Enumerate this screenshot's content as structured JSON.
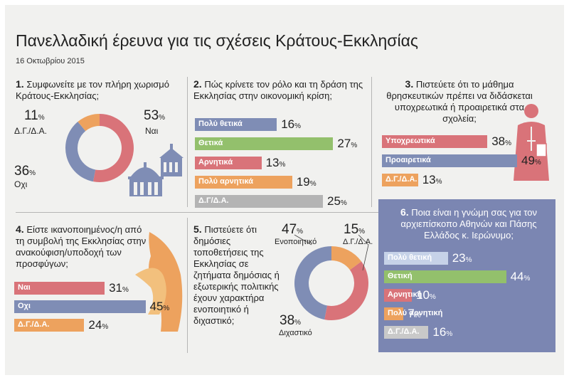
{
  "title": "Πανελλαδική έρευνα για τις σχέσεις Κράτους-Εκκλησίας",
  "date": "16 Οκτωβρίου 2015",
  "pct_sign": "%",
  "colors": {
    "blue": "#7f8db5",
    "red": "#d97379",
    "orange": "#eda25e",
    "green": "#93c06c",
    "gray": "#b4b4b4"
  },
  "icons": [
    "church-icon",
    "priest-icon",
    "hands-icon"
  ],
  "chart_data": [
    {
      "type": "pie",
      "id": "q1",
      "number": "1.",
      "question": "Συμφωνείτε με τον πλήρη χωρισμό Κράτους-Εκκλησίας;",
      "labels": [
        "Ναι",
        "Οχι",
        "Δ.Γ./Δ.Α."
      ],
      "values": [
        53,
        36,
        11
      ],
      "colors": [
        "#d97379",
        "#7f8db5",
        "#eda25e"
      ]
    },
    {
      "type": "bar",
      "id": "q2",
      "number": "2.",
      "question": "Πώς κρίνετε τον ρόλο και τη δράση της Εκκλησίας στην οικονομική κρίση;",
      "categories": [
        "Πολύ θετικά",
        "Θετικά",
        "Αρνητικά",
        "Πολύ αρνητικά",
        "Δ.Γ/Δ.Α."
      ],
      "values": [
        16,
        27,
        13,
        19,
        25
      ],
      "colors": [
        "#7f8db5",
        "#93c06c",
        "#d97379",
        "#eda25e",
        "#b4b4b4"
      ]
    },
    {
      "type": "bar",
      "id": "q3",
      "number": "3.",
      "question": "Πιστεύετε ότι το μάθημα θρησκευτικών πρέπει να διδάσκεται υποχρεωτικά ή προαιρετικά στα σχολεία;",
      "categories": [
        "Υποχρεωτικά",
        "Προαιρετικά",
        "Δ.Γ./Δ.Α."
      ],
      "values": [
        38,
        49,
        13
      ],
      "colors": [
        "#d97379",
        "#7f8db5",
        "#eda25e"
      ]
    },
    {
      "type": "bar",
      "id": "q4",
      "number": "4.",
      "question": "Είστε ικανοποιημένος/η από τη συμβολή της Εκκλησίας στην ανακούφιση/υποδοχή των προσφύγων;",
      "categories": [
        "Ναι",
        "Οχι",
        "Δ.Γ./Δ.Α."
      ],
      "values": [
        31,
        45,
        24
      ],
      "colors": [
        "#d97379",
        "#7f8db5",
        "#eda25e"
      ]
    },
    {
      "type": "pie",
      "id": "q5",
      "number": "5.",
      "question": "Πιστεύετε ότι δημόσιες τοποθετήσεις της Εκκλησίας σε ζητήματα δημόσιας ή εξωτερικής πολιτικής έχουν χαρακτήρα ενοποιητικό ή διχαστικό;",
      "labels": [
        "Ενοποιητικό",
        "Διχαστικό",
        "Δ.Γ./Δ.Α."
      ],
      "values": [
        47,
        38,
        15
      ],
      "colors": [
        "#7f8db5",
        "#d97379",
        "#eda25e"
      ]
    },
    {
      "type": "bar",
      "id": "q6",
      "number": "6.",
      "question": "Ποια είναι η γνώμη σας για τον αρχιεπίσκοπο Αθηνών και Πάσης Ελλάδος κ. Ιερώνυμο;",
      "categories": [
        "Πολύ θετική",
        "Θετική",
        "Αρνητική",
        "Πολύ αρνητική",
        "Δ.Γ./Δ.Α."
      ],
      "values": [
        23,
        44,
        10,
        7,
        16
      ],
      "colors": [
        "#c6d2e8",
        "#93c06c",
        "#d97379",
        "#eda25e",
        "#c9c9c9"
      ]
    }
  ]
}
